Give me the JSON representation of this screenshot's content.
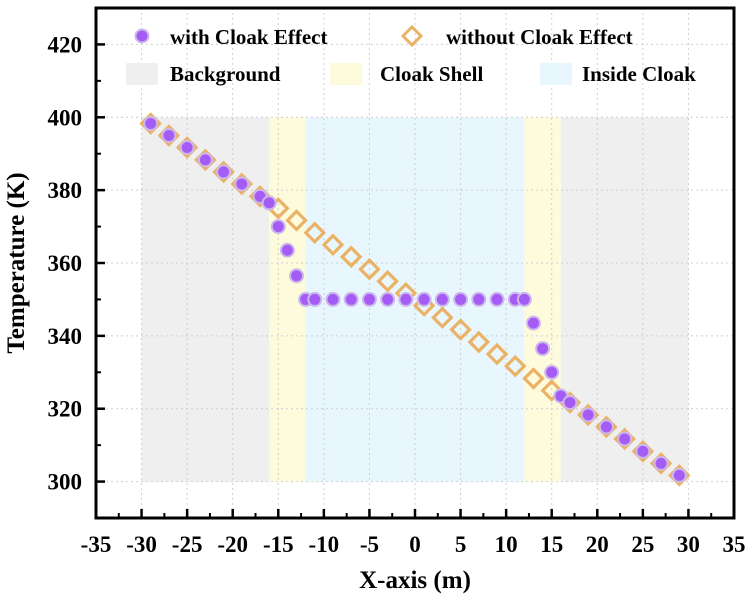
{
  "chart_data": {
    "type": "scatter",
    "title": "",
    "xlabel": "X-axis (m)",
    "ylabel": "Temperature (K)",
    "xlim": [
      -35,
      35
    ],
    "ylim": [
      290,
      430
    ],
    "xticks": [
      -35,
      -30,
      -25,
      -20,
      -15,
      -10,
      -5,
      0,
      5,
      10,
      15,
      20,
      25,
      30,
      35
    ],
    "yticks": [
      300,
      320,
      340,
      360,
      380,
      400,
      420
    ],
    "grid": true,
    "legend_placement": "top",
    "regions": [
      {
        "name": "Background",
        "x": [
          -30,
          -16
        ],
        "y": [
          300,
          400
        ],
        "color": "#efefef"
      },
      {
        "name": "Cloak Shell",
        "x": [
          -16,
          -12
        ],
        "y": [
          300,
          400
        ],
        "color": "#fdfbdc"
      },
      {
        "name": "Inside Cloak",
        "x": [
          -12,
          12
        ],
        "y": [
          300,
          400
        ],
        "color": "#e8f7fd"
      },
      {
        "name": "Cloak Shell",
        "x": [
          12,
          16
        ],
        "y": [
          300,
          400
        ],
        "color": "#fdfbdc"
      },
      {
        "name": "Background",
        "x": [
          16,
          30
        ],
        "y": [
          300,
          400
        ],
        "color": "#efefef"
      }
    ],
    "legend_regions": [
      {
        "name": "Background",
        "color": "#efefef"
      },
      {
        "name": "Cloak Shell",
        "color": "#fdfbdc"
      },
      {
        "name": "Inside Cloak",
        "color": "#e8f7fd"
      }
    ],
    "series": [
      {
        "name": "with Cloak Effect",
        "marker": "circle",
        "color": "#a55cf5",
        "x": [
          -29,
          -27,
          -25,
          -23,
          -21,
          -19,
          -17,
          -16,
          -15,
          -14,
          -13,
          -12,
          -11,
          -9,
          -7,
          -5,
          -3,
          -1,
          1,
          3,
          5,
          7,
          9,
          11,
          12,
          13,
          14,
          15,
          16,
          17,
          19,
          21,
          23,
          25,
          27,
          29
        ],
        "y": [
          398.3,
          395.0,
          391.7,
          388.3,
          385.0,
          381.7,
          378.3,
          376.5,
          370.0,
          363.5,
          356.5,
          350,
          350,
          350,
          350,
          350,
          350,
          350,
          350,
          350,
          350,
          350,
          350,
          350,
          350,
          343.5,
          336.5,
          330.0,
          323.5,
          321.7,
          318.3,
          315.0,
          311.7,
          308.3,
          305.0,
          301.7
        ]
      },
      {
        "name": "without Cloak Effect",
        "marker": "diamond",
        "color": "#ebb265",
        "x": [
          -29,
          -27,
          -25,
          -23,
          -21,
          -19,
          -17,
          -15,
          -13,
          -11,
          -9,
          -7,
          -5,
          -3,
          -1,
          1,
          3,
          5,
          7,
          9,
          11,
          13,
          15,
          17,
          19,
          21,
          23,
          25,
          27,
          29
        ],
        "y": [
          398.3,
          395.0,
          391.7,
          388.3,
          385.0,
          381.7,
          378.3,
          375.0,
          371.7,
          368.3,
          365.0,
          361.7,
          358.3,
          355.0,
          351.7,
          348.3,
          345.0,
          341.7,
          338.3,
          335.0,
          331.7,
          328.3,
          325.0,
          321.7,
          318.3,
          315.0,
          311.7,
          308.3,
          305.0,
          301.7
        ]
      }
    ]
  }
}
